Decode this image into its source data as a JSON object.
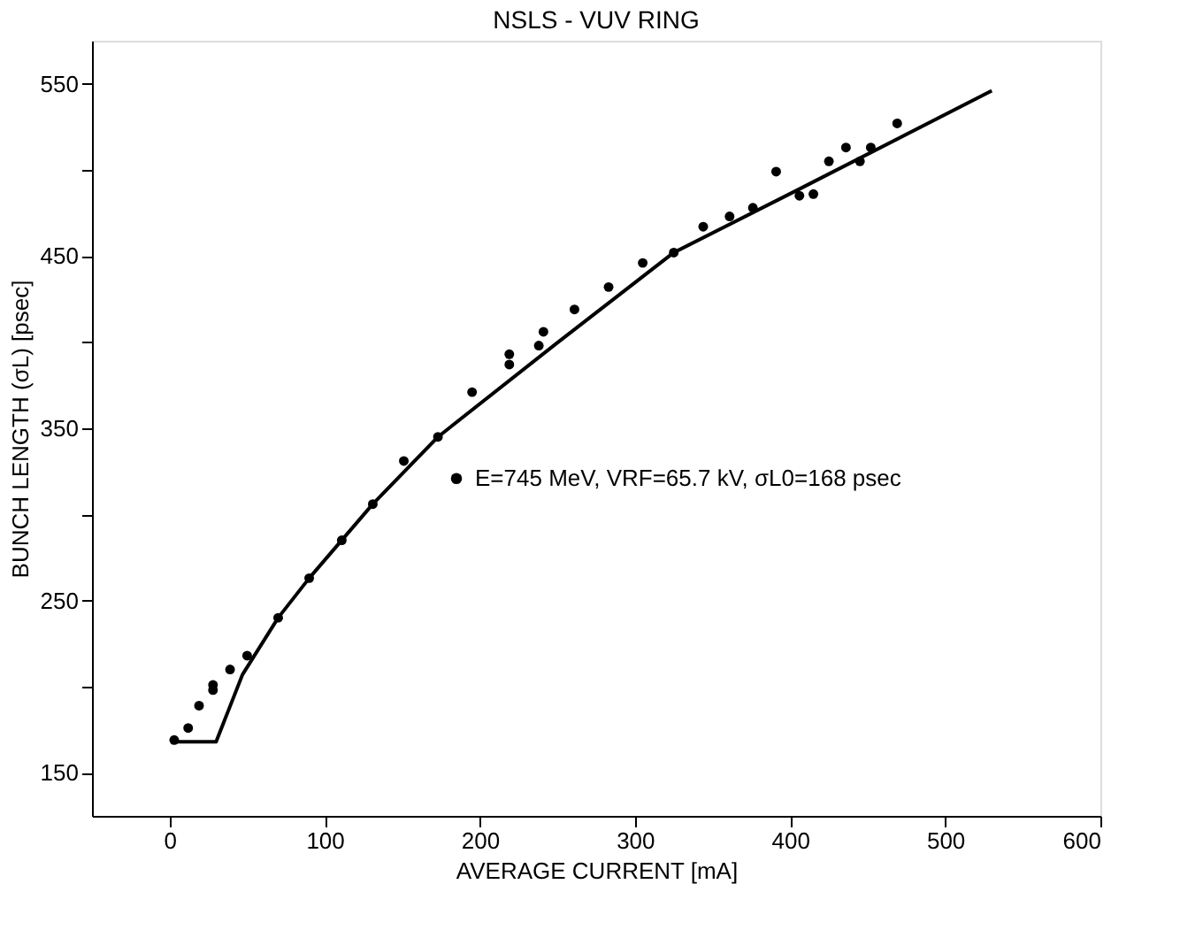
{
  "chart_data": {
    "type": "scatter",
    "title": "NSLS - VUV RING",
    "xlabel": "AVERAGE CURRENT [mA]",
    "ylabel": "BUNCH LENGTH (σL) [psec]",
    "xlim": [
      -50,
      600
    ],
    "xticks": [
      0,
      100,
      200,
      300,
      400,
      500,
      600
    ],
    "ylim": [
      125,
      575
    ],
    "yticks": [
      150,
      {
        "value": 200,
        "label": null
      },
      250,
      {
        "value": 300,
        "label": null
      },
      350,
      {
        "value": 400,
        "label": null
      },
      450,
      {
        "value": 500,
        "label": null
      },
      550
    ],
    "grid": false,
    "legend": "right",
    "marker": "circle",
    "series": [
      {
        "name": "E=745 MeV,  VRF=65.7 kV, σL0=168 psec",
        "color": "#000000",
        "x": [
          3,
          12,
          19,
          28,
          28,
          39,
          50,
          70,
          90,
          111,
          131,
          151,
          173,
          195,
          219,
          219,
          238,
          241,
          261,
          283,
          305,
          325,
          344,
          361,
          376,
          391,
          406,
          415,
          425,
          436,
          445,
          452,
          469
        ],
        "values": [
          169,
          176,
          189,
          198,
          201,
          210,
          218,
          240,
          263,
          285,
          306,
          331,
          345,
          371,
          393,
          387,
          398,
          406,
          419,
          432,
          446,
          452,
          467,
          473,
          478,
          499,
          485,
          486,
          505,
          513,
          505,
          513,
          527
        ]
      },
      {
        "type": "line",
        "color": "#000000",
        "line_style": "solid",
        "marker": "none",
        "x": [
          5,
          30,
          47,
          70,
          90,
          131,
          173,
          249,
          325,
          404,
          530
        ],
        "values": [
          168,
          168,
          207,
          240,
          263,
          306,
          345,
          399,
          452,
          488,
          546
        ]
      }
    ]
  }
}
